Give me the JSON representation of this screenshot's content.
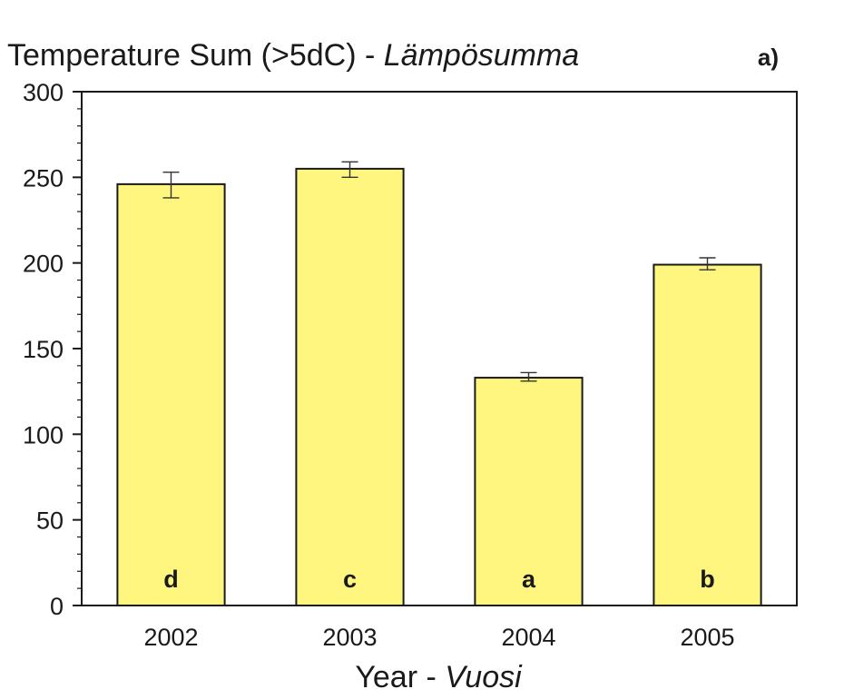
{
  "chart_data": {
    "type": "bar",
    "title": "Temperature Sum (>5dC) - ",
    "title_italic": "Lämpösumma",
    "panel_label": "a)",
    "xlabel": "Year - ",
    "xlabel_italic": "Vuosi",
    "ylabel": "",
    "categories": [
      "2002",
      "2003",
      "2004",
      "2005"
    ],
    "values": [
      246,
      255,
      133,
      199
    ],
    "error_low": [
      238,
      250,
      131,
      196
    ],
    "error_high": [
      253,
      259,
      136,
      203
    ],
    "significance_letters": [
      "d",
      "c",
      "a",
      "b"
    ],
    "ylim": [
      0,
      300
    ],
    "yticks": [
      0,
      50,
      100,
      150,
      200,
      250,
      300
    ],
    "y_minor_step": 10,
    "bar_color": "#fff67f",
    "edge_color": "#1a1a1a",
    "grid": false,
    "legend": "none"
  }
}
